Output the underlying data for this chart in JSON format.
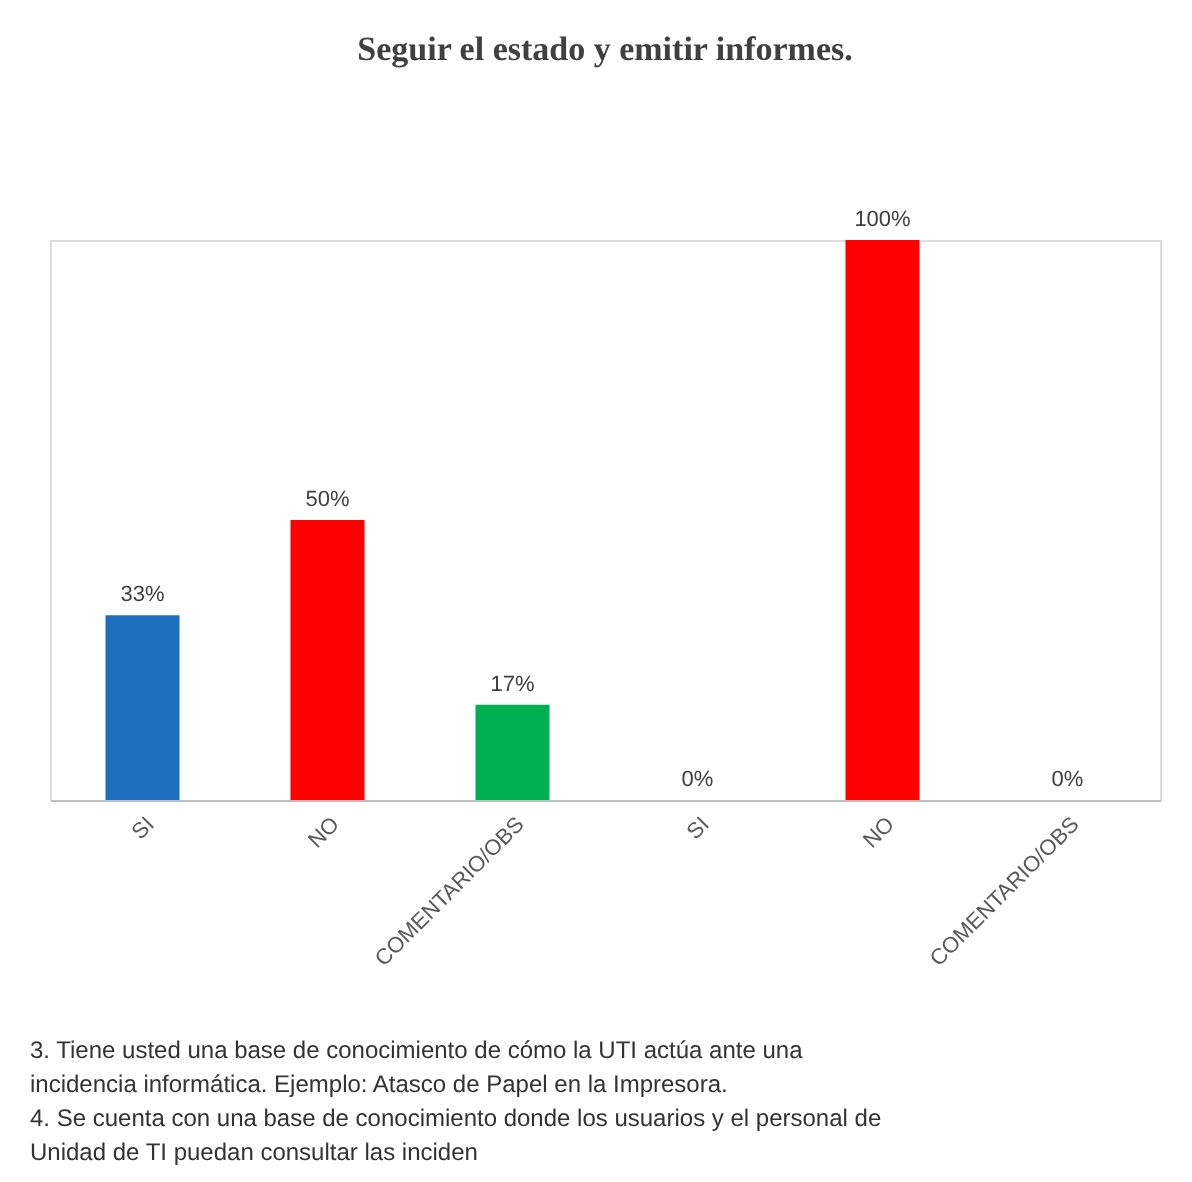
{
  "chart_data": {
    "type": "bar",
    "title": "Seguir el estado y emitir informes.",
    "categories": [
      "SI",
      "NO",
      "COMENTARIO/OBS",
      "SI",
      "NO",
      "COMENTARIO/OBS"
    ],
    "values": [
      33,
      50,
      17,
      0,
      100,
      0
    ],
    "value_labels": [
      "33%",
      "50%",
      "17%",
      "0%",
      "100%",
      "0%"
    ],
    "colors": [
      "#1f6fc0",
      "#ff0000",
      "#00b050",
      "#1f6fc0",
      "#ff0000",
      "#00b050"
    ],
    "grid": false,
    "annotations": [
      "3. Tiene usted una base de conocimiento de cómo la UTI actúa ante una",
      "incidencia informática. Ejemplo: Atasco de Papel en la Impresora.",
      "4. Se cuenta con una base de conocimiento donde los usuarios y el personal de",
      "Unidad de TI puedan consultar las inciden"
    ]
  }
}
